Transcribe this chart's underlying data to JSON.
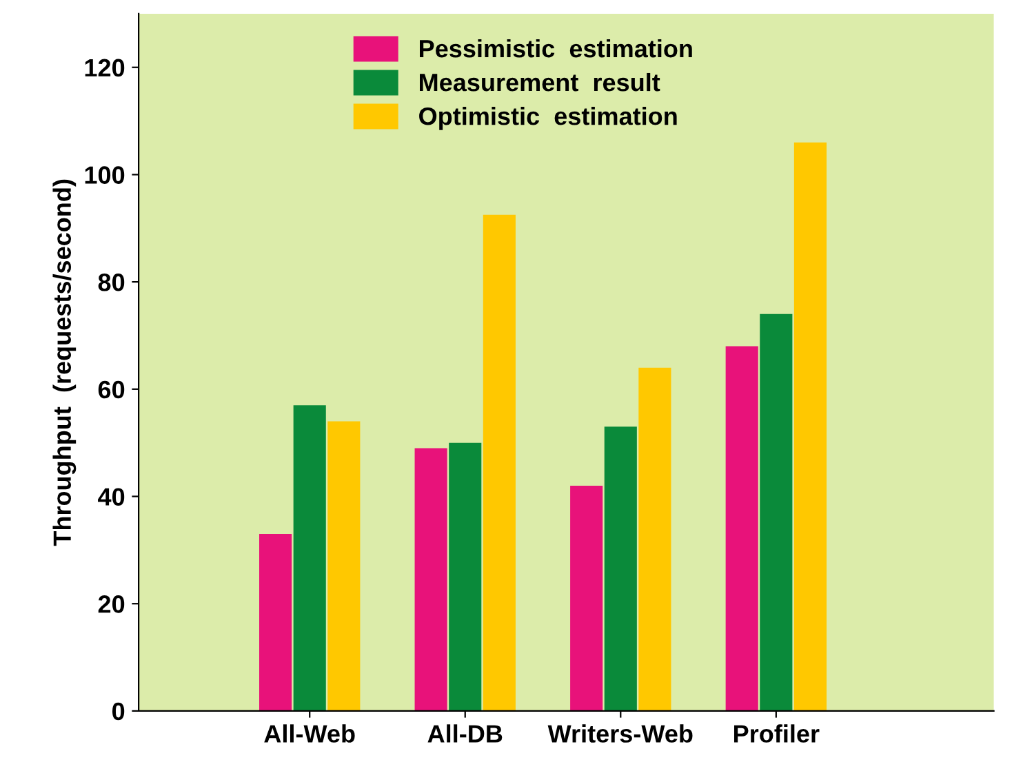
{
  "chart_data": {
    "type": "bar",
    "ylabel": "Throughput  (requests/second)",
    "categories": [
      "All-Web",
      "All-DB",
      "Writers-Web",
      "Profiler"
    ],
    "series": [
      {
        "name": "Pessimistic  estimation",
        "color": "#e8127a",
        "values": [
          33,
          49,
          42,
          68
        ]
      },
      {
        "name": "Measurement  result",
        "color": "#0a8a3a",
        "values": [
          57,
          50,
          53,
          74
        ]
      },
      {
        "name": "Optimistic  estimation",
        "color": "#ffc800",
        "values": [
          54,
          92.5,
          64,
          106
        ]
      }
    ],
    "ylim": [
      0,
      130
    ],
    "yticks": [
      0,
      20,
      40,
      60,
      80,
      100,
      120
    ],
    "grid": false,
    "legend": "top"
  }
}
